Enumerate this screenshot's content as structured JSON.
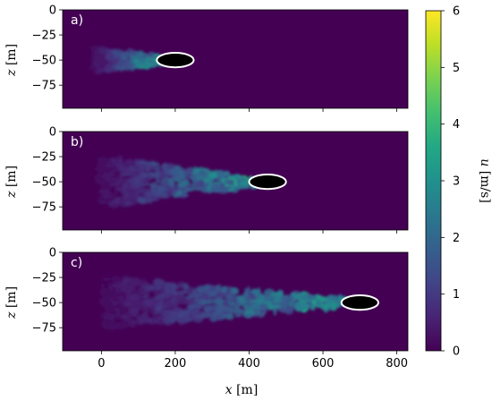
{
  "chart_data": {
    "type": "heatmap",
    "colormap": "viridis",
    "colorbar": {
      "label_var": "u",
      "label_unit": "[m/s]",
      "min": 0,
      "max": 6,
      "ticks": [
        "0",
        "1",
        "2",
        "3",
        "4",
        "5",
        "6"
      ]
    },
    "shared_x": {
      "label_var": "x",
      "label_unit": "[m]",
      "range": [
        -105,
        830
      ],
      "ticks": [
        "0",
        "200",
        "400",
        "600",
        "800"
      ],
      "tick_values": [
        0,
        200,
        400,
        600,
        800
      ]
    },
    "panels": [
      {
        "label": "a)",
        "ylabel_var": "z",
        "ylabel_unit": "[m]",
        "yrange": [
          -98,
          0
        ],
        "yticks": [
          "0",
          "−25",
          "−50",
          "−75"
        ],
        "ytick_values": [
          0,
          -25,
          -50,
          -75
        ],
        "body": {
          "x_center": 200,
          "z_center": -50,
          "length": 100,
          "thickness": 10
        },
        "wake_start_x": -20,
        "peak_u": 4.2
      },
      {
        "label": "b)",
        "ylabel_var": "z",
        "ylabel_unit": "[m]",
        "yrange": [
          -98,
          0
        ],
        "yticks": [
          "0",
          "−25",
          "−50",
          "−75"
        ],
        "ytick_values": [
          0,
          -25,
          -50,
          -75
        ],
        "body": {
          "x_center": 450,
          "z_center": -50,
          "length": 100,
          "thickness": 10
        },
        "wake_start_x": -10,
        "peak_u": 4.0
      },
      {
        "label": "c)",
        "ylabel_var": "z",
        "ylabel_unit": "[m]",
        "yrange": [
          -98,
          0
        ],
        "yticks": [
          "0",
          "−25",
          "−50",
          "−75"
        ],
        "ytick_values": [
          0,
          -25,
          -50,
          -75
        ],
        "body": {
          "x_center": 700,
          "z_center": -50,
          "length": 100,
          "thickness": 10
        },
        "wake_start_x": 0,
        "peak_u": 4.0
      }
    ]
  }
}
